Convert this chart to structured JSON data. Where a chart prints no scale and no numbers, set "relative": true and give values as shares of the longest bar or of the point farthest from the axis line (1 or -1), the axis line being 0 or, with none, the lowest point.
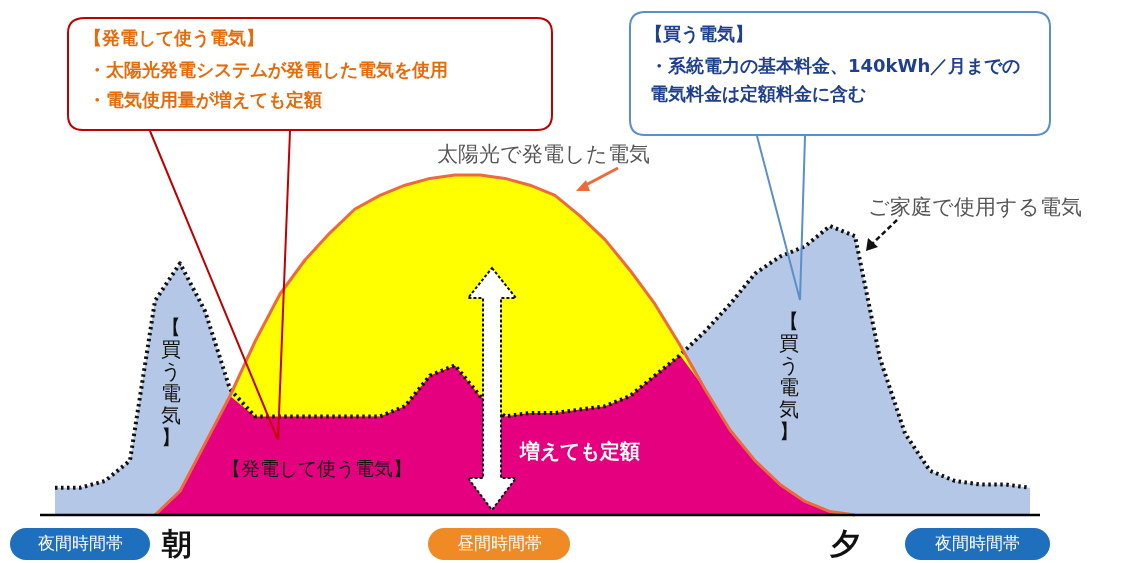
{
  "chart_data": {
    "type": "area",
    "relative": true,
    "categories": [
      null,
      null,
      null,
      null,
      null,
      null,
      null,
      null,
      null,
      null,
      null,
      null,
      null,
      null,
      null,
      null,
      null,
      null,
      null,
      null,
      null,
      null,
      null,
      null,
      null,
      null,
      null,
      null,
      null,
      null,
      null,
      null,
      null,
      null,
      null,
      null,
      null,
      null,
      null,
      null
    ],
    "series": [
      {
        "name": "ご家庭で使用する電気",
        "color": "#b4c7e7",
        "line_style": "dotted",
        "values": [
          0.08,
          0.08,
          0.1,
          0.16,
          0.63,
          0.74,
          0.6,
          0.37,
          0.29,
          0.29,
          0.29,
          0.29,
          0.29,
          0.29,
          0.32,
          0.41,
          0.44,
          0.35,
          0.29,
          0.3,
          0.3,
          0.31,
          0.32,
          0.35,
          0.41,
          0.47,
          0.54,
          0.62,
          0.71,
          0.76,
          0.79,
          0.85,
          0.82,
          0.46,
          0.24,
          0.13,
          0.1,
          0.09,
          0.09,
          0.08
        ]
      },
      {
        "name": "太陽光で発電した電気",
        "color": "#ffff00",
        "values": [
          0,
          0,
          0,
          0,
          0,
          0.07,
          0.21,
          0.35,
          0.51,
          0.65,
          0.75,
          0.83,
          0.9,
          0.94,
          0.97,
          0.99,
          1,
          1,
          0.99,
          0.97,
          0.94,
          0.88,
          0.81,
          0.72,
          0.62,
          0.5,
          0.37,
          0.25,
          0.16,
          0.09,
          0.04,
          0.01,
          0,
          0,
          0,
          0,
          0,
          0,
          0,
          0
        ]
      },
      {
        "name": "【発電して使う電気】",
        "color": "#e4007f",
        "values": [
          0,
          0,
          0,
          0,
          0,
          0.07,
          0.21,
          0.35,
          0.29,
          0.29,
          0.29,
          0.29,
          0.29,
          0.29,
          0.32,
          0.41,
          0.44,
          0.35,
          0.29,
          0.3,
          0.3,
          0.31,
          0.32,
          0.35,
          0.41,
          0.47,
          0.37,
          0.25,
          0.16,
          0.09,
          0.04,
          0.01,
          0,
          0,
          0,
          0,
          0,
          0,
          0,
          0
        ]
      }
    ],
    "annotations": [
      "【発電して使う電気】",
      "・太陽光発電システムが発電した電気を使用",
      "・電気使用量が増えても定額",
      "【買う電気】",
      "・系統電力の基本料金、140kWh／月までの電気料金は定額料金に含む",
      "【買う電気】",
      "【買う電気】",
      "増えても定額",
      "夜間時間帯",
      "朝",
      "昼間時間帯",
      "夕",
      "夜間時間帯"
    ]
  }
}
